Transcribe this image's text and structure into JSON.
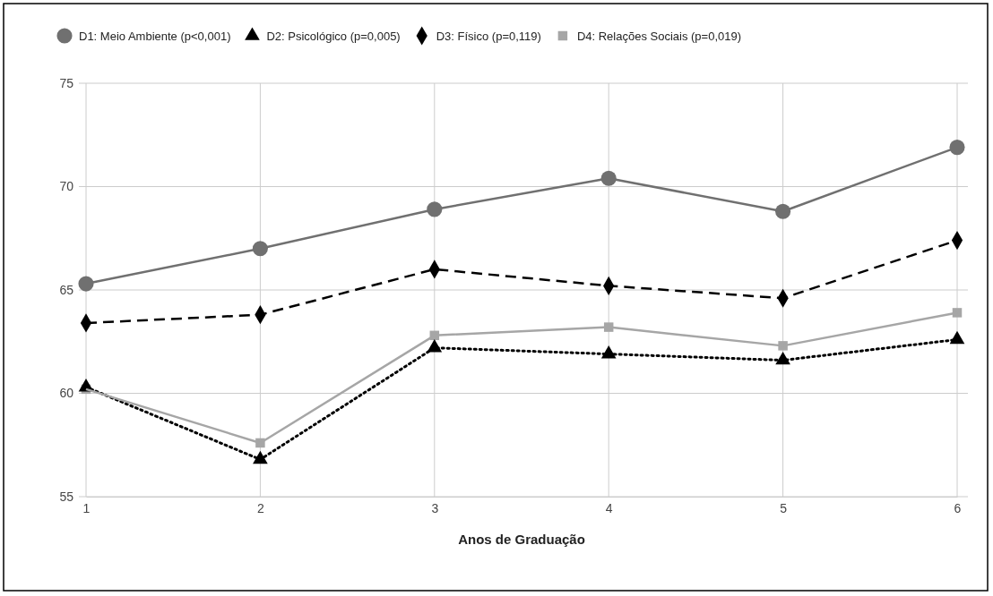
{
  "chart_data": {
    "type": "line",
    "xlabel": "Anos de Graduação",
    "x": [
      1,
      2,
      3,
      4,
      5,
      6
    ],
    "xlim": [
      1,
      6
    ],
    "xticks": [
      1,
      2,
      3,
      4,
      5,
      6
    ],
    "ylim": [
      55,
      75
    ],
    "yticks": [
      55,
      60,
      65,
      70,
      75
    ],
    "grid": true,
    "legend": "top",
    "series": [
      {
        "name": "D1: Meio Ambiente (p<0,001)",
        "color": "#707070",
        "marker": "circle",
        "line_style": "solid",
        "values": [
          65.3,
          67.0,
          68.9,
          70.4,
          68.8,
          71.9
        ]
      },
      {
        "name": "D2: Psicológico (p=0,005)",
        "color": "#000000",
        "marker": "triangle",
        "line_style": "dotted",
        "values": [
          60.3,
          56.8,
          62.2,
          61.9,
          61.6,
          62.6
        ]
      },
      {
        "name": "D3: Físico (p=0,119)",
        "color": "#000000",
        "marker": "diamond",
        "line_style": "dashed",
        "values": [
          63.4,
          63.8,
          66.0,
          65.2,
          64.6,
          67.4
        ]
      },
      {
        "name": "D4: Relações Sociais (p=0,019)",
        "color": "#a6a6a6",
        "marker": "square",
        "line_style": "solid",
        "values": [
          60.2,
          57.6,
          62.8,
          63.2,
          62.3,
          63.9
        ]
      }
    ]
  }
}
